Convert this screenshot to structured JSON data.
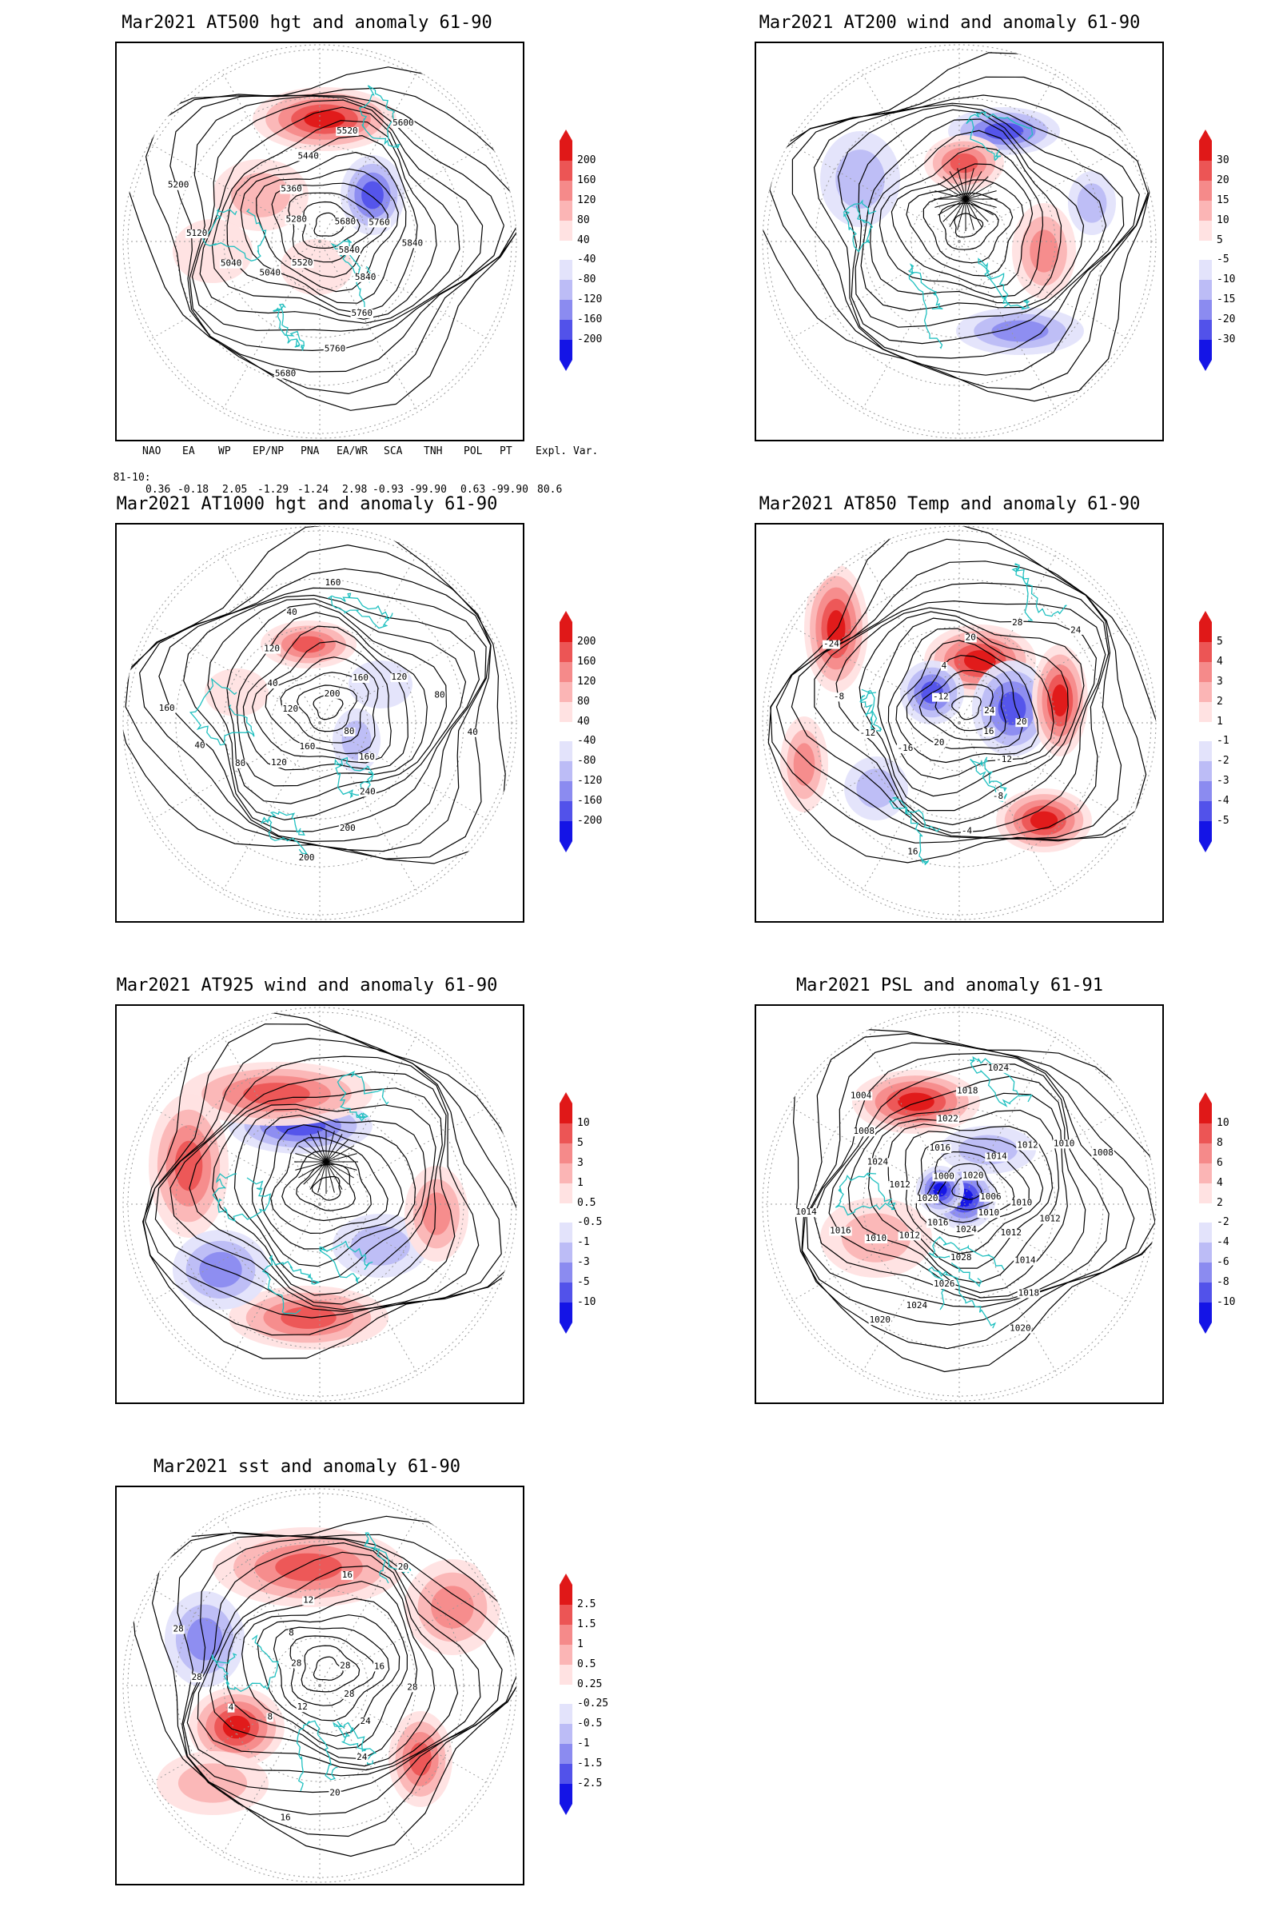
{
  "colors": {
    "coast": "#20c0c0",
    "contour": "#000000",
    "pos": [
      "#ffe2e2",
      "#fbb5b5",
      "#f58a8a",
      "#ec5555",
      "#e01818"
    ],
    "neg": [
      "#e3e3fb",
      "#bcbcf6",
      "#8b8bf0",
      "#5252ea",
      "#1414e6"
    ]
  },
  "panels": [
    {
      "id": "at500",
      "title": "Mar2021 AT500 hgt and anomaly 61-90",
      "colorbar": [
        "200",
        "160",
        "120",
        "80",
        "40",
        "-40",
        "-80",
        "-120",
        "-160",
        "-200"
      ],
      "contour_labels": [
        "5840",
        "5840",
        "5760",
        "5760",
        "5680",
        "5520",
        "5040",
        "5040",
        "5120",
        "5200",
        "5280",
        "5360",
        "5440",
        "5520",
        "5600",
        "5680",
        "5760",
        "5840"
      ]
    },
    {
      "id": "at200",
      "title": "Mar2021 AT200 wind and anomaly 61-90",
      "colorbar": [
        "30",
        "20",
        "15",
        "10",
        "5",
        "-5",
        "-10",
        "-15",
        "-20",
        "-30"
      ],
      "contour_labels": []
    },
    {
      "id": "at1000",
      "title": "Mar2021 AT1000 hgt and anomaly 61-90",
      "colorbar": [
        "200",
        "160",
        "120",
        "80",
        "40",
        "-40",
        "-80",
        "-120",
        "-160",
        "-200"
      ],
      "contour_labels": [
        "80",
        "160",
        "240",
        "200",
        "200",
        "160",
        "120",
        "80",
        "40",
        "160",
        "120",
        "40",
        "120",
        "40",
        "160",
        "200",
        "160",
        "120",
        "80",
        "40"
      ]
    },
    {
      "id": "at850",
      "title": "Mar2021 AT850 Temp and anomaly 61-90",
      "colorbar": [
        "5",
        "4",
        "3",
        "2",
        "1",
        "-1",
        "-2",
        "-3",
        "-4",
        "-5"
      ],
      "contour_labels": [
        "16",
        "-12",
        "-8",
        "-4",
        "16",
        "20",
        "-16",
        "-12",
        "-8",
        "-24",
        "-12",
        "4",
        "20",
        "28",
        "24",
        "24",
        "20"
      ]
    },
    {
      "id": "at925",
      "title": "Mar2021 AT925 wind and anomaly 61-90",
      "colorbar": [
        "10",
        "5",
        "3",
        "1",
        "0.5",
        "-0.5",
        "-1",
        "-3",
        "-5",
        "-10"
      ],
      "contour_labels": []
    },
    {
      "id": "psl",
      "title": "Mar2021 PSL and anomaly 61-91",
      "colorbar": [
        "10",
        "8",
        "6",
        "4",
        "2",
        "-2",
        "-4",
        "-6",
        "-8",
        "-10"
      ],
      "contour_labels": [
        "1010",
        "1012",
        "1014",
        "1018",
        "1020",
        "1024",
        "1028",
        "1026",
        "1024",
        "1020",
        "1016",
        "1012",
        "1010",
        "1016",
        "1014",
        "1020",
        "1012",
        "1024",
        "1008",
        "1004",
        "1000",
        "1016",
        "1022",
        "1018",
        "1024",
        "1020",
        "1014",
        "1012",
        "1010",
        "1008",
        "1006",
        "1010",
        "1012"
      ]
    },
    {
      "id": "sst",
      "title": "Mar2021 sst and anomaly 61-90",
      "colorbar": [
        "2.5",
        "1.5",
        "1",
        "0.5",
        "0.25",
        "-0.25",
        "-0.5",
        "-1",
        "-1.5",
        "-2.5"
      ],
      "contour_labels": [
        "28",
        "24",
        "24",
        "20",
        "16",
        "12",
        "8",
        "4",
        "28",
        "28",
        "28",
        "8",
        "12",
        "16",
        "20",
        "28",
        "16",
        "28"
      ]
    }
  ],
  "indices": {
    "header": [
      "NAO",
      "EA",
      "WP",
      "EP/NP",
      "PNA",
      "EA/WR",
      "SCA",
      "TNH",
      "POL",
      "PT",
      "Expl. Var."
    ],
    "row_label": "81-10:",
    "values": [
      "0.36",
      "-0.18",
      "2.05",
      "-1.29",
      "-1.24",
      "2.98",
      "-0.93",
      "-99.90",
      "0.63",
      "-99.90",
      "80.6"
    ]
  }
}
